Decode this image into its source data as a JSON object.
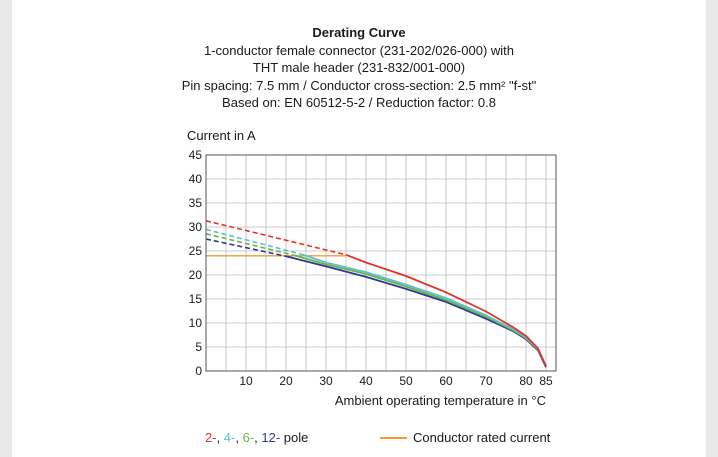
{
  "titles": [
    "Derating Curve",
    "1-conductor female connector (231-202/026-000) with",
    "THT male header (231-832/001-000)",
    "Pin spacing: 7.5 mm / Conductor cross-section: 2.5 mm² \"f-st\"",
    "Based on: EN 60512-5-2 / Reduction factor: 0.8"
  ],
  "legend": {
    "pole_parts": [
      {
        "text": "2-",
        "color": "#e2332b"
      },
      {
        "text": ", ",
        "color": "#1a1a1a"
      },
      {
        "text": "4-",
        "color": "#5fc2c9"
      },
      {
        "text": ", ",
        "color": "#1a1a1a"
      },
      {
        "text": "6-",
        "color": "#6cb24a"
      },
      {
        "text": ", ",
        "color": "#1a1a1a"
      },
      {
        "text": "12-",
        "color": "#2b3990"
      },
      {
        "text": " pole",
        "color": "#1a1a1a"
      }
    ],
    "rated_label": "Conductor rated current",
    "rated_color": "#f39c33"
  },
  "chart_data": {
    "type": "line",
    "xlabel": "Ambient operating temperature in °C",
    "ylabel": "Current in A",
    "xlim": [
      0,
      87.5
    ],
    "ylim": [
      0,
      45
    ],
    "xticks": [
      10,
      20,
      30,
      40,
      50,
      60,
      70,
      80,
      85
    ],
    "yticks": [
      0,
      5,
      10,
      15,
      20,
      25,
      30,
      35,
      40,
      45
    ],
    "grid": true,
    "series": [
      {
        "name": "2-",
        "color": "#e2332b",
        "dashed": [
          [
            0,
            31.3
          ],
          [
            35,
            24.2
          ]
        ],
        "solid": [
          [
            35,
            24.2
          ],
          [
            40,
            22.6
          ],
          [
            50,
            19.8
          ],
          [
            60,
            16.4
          ],
          [
            70,
            12.4
          ],
          [
            77,
            9.0
          ],
          [
            80,
            7.3
          ],
          [
            83,
            4.7
          ],
          [
            85,
            1.0
          ]
        ]
      },
      {
        "name": "4-",
        "color": "#5fc2c9",
        "dashed": [
          [
            0,
            29.5
          ],
          [
            24,
            24.3
          ]
        ],
        "solid": [
          [
            24,
            24.3
          ],
          [
            30,
            22.6
          ],
          [
            40,
            20.6
          ],
          [
            50,
            18.0
          ],
          [
            60,
            15.2
          ],
          [
            70,
            11.6
          ],
          [
            77,
            8.6
          ],
          [
            80,
            7.0
          ],
          [
            83,
            4.6
          ],
          [
            85,
            1.0
          ]
        ]
      },
      {
        "name": "6-",
        "color": "#6cb24a",
        "dashed": [
          [
            0,
            28.6
          ],
          [
            22,
            24.1
          ]
        ],
        "solid": [
          [
            22,
            24.1
          ],
          [
            30,
            22.2
          ],
          [
            40,
            20.2
          ],
          [
            50,
            17.6
          ],
          [
            60,
            14.8
          ],
          [
            70,
            11.3
          ],
          [
            77,
            8.4
          ],
          [
            80,
            6.8
          ],
          [
            83,
            4.5
          ],
          [
            85,
            1.0
          ]
        ]
      },
      {
        "name": "12-",
        "color": "#2b3990",
        "dashed": [
          [
            0,
            27.5
          ],
          [
            20,
            23.9
          ]
        ],
        "solid": [
          [
            20,
            23.9
          ],
          [
            30,
            21.8
          ],
          [
            40,
            19.6
          ],
          [
            50,
            17.1
          ],
          [
            60,
            14.4
          ],
          [
            70,
            10.9
          ],
          [
            77,
            8.2
          ],
          [
            80,
            6.6
          ],
          [
            83,
            4.3
          ],
          [
            85,
            0.8
          ]
        ]
      },
      {
        "name": "Conductor rated current",
        "color": "#f39c33",
        "solid": [
          [
            0,
            24
          ],
          [
            35,
            24
          ]
        ]
      }
    ]
  }
}
